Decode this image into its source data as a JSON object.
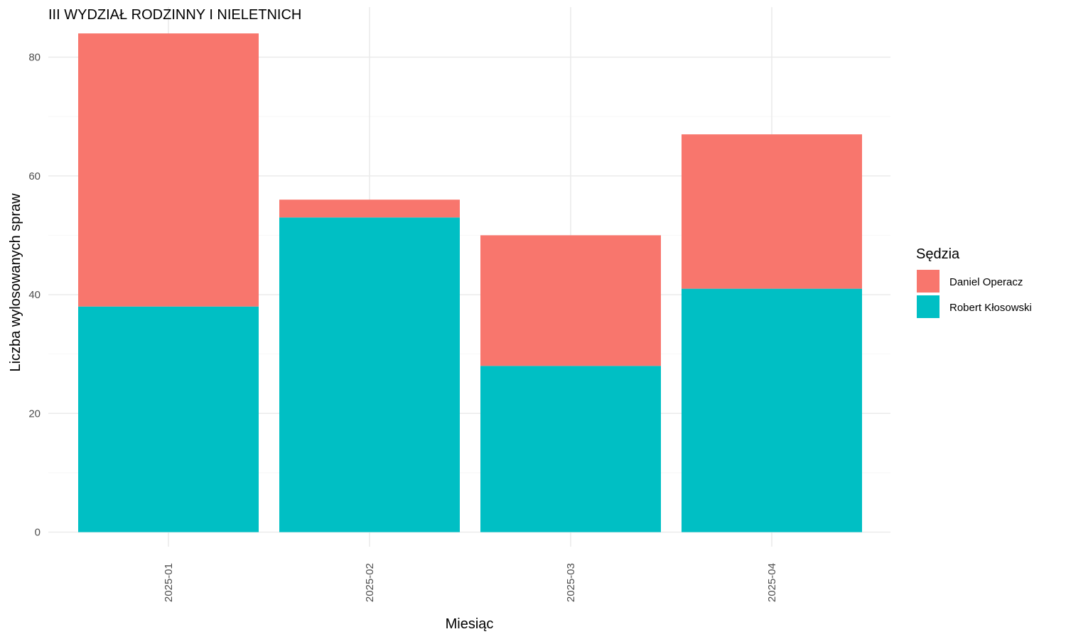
{
  "chart_data": {
    "type": "bar",
    "stacked": true,
    "title": "III WYDZIAŁ RODZINNY I NIELETNICH",
    "xlabel": "Miesiąc",
    "ylabel": "Liczba wylosowanych spraw",
    "categories": [
      "2025-01",
      "2025-02",
      "2025-03",
      "2025-04"
    ],
    "series": [
      {
        "name": "Robert Kłosowski",
        "color": "#00BFC4",
        "values": [
          38,
          53,
          28,
          41
        ]
      },
      {
        "name": "Daniel Operacz",
        "color": "#F8766D",
        "values": [
          46,
          3,
          22,
          26
        ]
      }
    ],
    "ylim": [
      0,
      85
    ],
    "yticks": [
      0,
      20,
      40,
      60,
      80
    ],
    "grid": true,
    "legend": {
      "title": "Sędzia",
      "position": "right",
      "order": [
        "Daniel Operacz",
        "Robert Kłosowski"
      ]
    }
  }
}
